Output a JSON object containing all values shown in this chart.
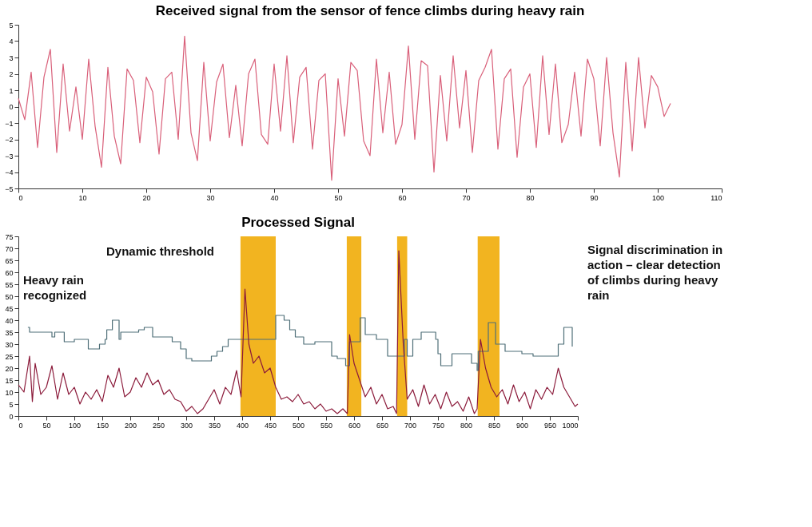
{
  "chart_data": [
    {
      "type": "line",
      "title": "Received signal from the sensor of fence climbs during heavy rain",
      "xlim": [
        0,
        110
      ],
      "xticks": [
        0,
        10,
        20,
        30,
        40,
        50,
        60,
        70,
        80,
        90,
        100,
        110
      ],
      "ylim": [
        -5,
        5
      ],
      "yticks": [
        -5,
        -4,
        -3,
        -2,
        -1,
        0,
        1,
        2,
        3,
        4,
        5
      ],
      "grid": false,
      "series": [
        {
          "color": "#d9607a",
          "x": [
            0,
            1,
            2,
            3,
            4,
            5,
            6,
            7,
            8,
            9,
            10,
            11,
            12,
            13,
            14,
            15,
            16,
            17,
            18,
            19,
            20,
            21,
            22,
            23,
            24,
            25,
            26,
            27,
            28,
            29,
            30,
            31,
            32,
            33,
            34,
            35,
            36,
            37,
            38,
            39,
            40,
            41,
            42,
            43,
            44,
            45,
            46,
            47,
            48,
            49,
            50,
            51,
            52,
            53,
            54,
            55,
            56,
            57,
            58,
            59,
            60,
            61,
            62,
            63,
            64,
            65,
            66,
            67,
            68,
            69,
            70,
            71,
            72,
            73,
            74,
            75,
            76,
            77,
            78,
            79,
            80,
            81,
            82,
            83,
            84,
            85,
            86,
            87,
            88,
            89,
            90,
            91,
            92,
            93,
            94,
            95,
            96,
            97,
            98,
            99,
            100,
            101,
            102
          ],
          "values": [
            0.5,
            -0.8,
            2.1,
            -2.5,
            1.8,
            3.5,
            -2.8,
            2.6,
            -1.5,
            1.2,
            -2.0,
            2.9,
            -1.2,
            -3.7,
            2.4,
            -1.8,
            -3.5,
            2.3,
            1.6,
            -2.2,
            1.8,
            0.9,
            -2.9,
            1.7,
            2.1,
            -2.0,
            4.3,
            -1.6,
            -3.3,
            2.7,
            -2.1,
            1.5,
            2.6,
            -1.9,
            1.3,
            -2.4,
            2.0,
            2.9,
            -1.7,
            -2.3,
            2.6,
            -1.5,
            3.1,
            -2.2,
            1.8,
            2.4,
            -2.6,
            1.6,
            2.0,
            -4.5,
            1.7,
            -1.8,
            2.7,
            2.2,
            -2.1,
            -3.0,
            2.9,
            -1.6,
            2.1,
            -2.3,
            -1.1,
            3.7,
            -2.0,
            2.8,
            2.5,
            -4.0,
            1.9,
            -2.1,
            3.1,
            -1.3,
            2.2,
            -2.8,
            1.6,
            2.4,
            3.5,
            -2.6,
            1.7,
            2.3,
            -3.1,
            1.2,
            2.0,
            -2.5,
            3.1,
            -1.7,
            2.6,
            -2.2,
            -1.1,
            2.1,
            -1.8,
            2.9,
            1.7,
            -2.4,
            3.0,
            -1.6,
            -4.3,
            2.7,
            -2.7,
            3.0,
            -1.3,
            1.9,
            1.2,
            -0.6,
            0.2
          ]
        }
      ]
    },
    {
      "type": "line",
      "title": "Processed Signal",
      "xlim": [
        0,
        1000
      ],
      "xticks": [
        0,
        50,
        100,
        150,
        200,
        250,
        300,
        350,
        400,
        450,
        500,
        550,
        600,
        650,
        700,
        750,
        800,
        850,
        900,
        950,
        {
          "value": 1000,
          "label": "1000"
        }
      ],
      "ylim": [
        0,
        75
      ],
      "yticks": [
        0,
        5,
        10,
        15,
        20,
        25,
        30,
        35,
        40,
        45,
        50,
        55,
        60,
        65,
        70,
        75
      ],
      "grid": false,
      "bands": [
        {
          "axis": "x",
          "from": 397,
          "to": 460,
          "color": "#f2b420"
        },
        {
          "axis": "x",
          "from": 587,
          "to": 613,
          "color": "#f2b420"
        },
        {
          "axis": "x",
          "from": 677,
          "to": 695,
          "color": "#f2b420"
        },
        {
          "axis": "x",
          "from": 821,
          "to": 860,
          "color": "#f2b420"
        }
      ],
      "series": [
        {
          "type": "step",
          "color": "#4f6f78",
          "x": [
            17,
            20,
            60,
            65,
            82,
            100,
            125,
            145,
            155,
            158,
            168,
            180,
            183,
            215,
            225,
            240,
            275,
            290,
            300,
            310,
            345,
            355,
            365,
            375,
            460,
            475,
            485,
            495,
            510,
            530,
            560,
            570,
            585,
            592,
            611,
            620,
            640,
            660,
            690,
            695,
            705,
            720,
            746,
            750,
            755,
            775,
            810,
            820,
            822,
            840,
            853,
            870,
            900,
            920,
            935,
            965,
            975,
            985,
            990
          ],
          "values": [
            37,
            35,
            33,
            35,
            31,
            32,
            28,
            30,
            32,
            36,
            40,
            32,
            35,
            36,
            37,
            33,
            31,
            28,
            24,
            23,
            25,
            27,
            29,
            32,
            42,
            40,
            36,
            33,
            30,
            31,
            25,
            24,
            21,
            31,
            41,
            34,
            32,
            25,
            32,
            25,
            32,
            35,
            32,
            26,
            21,
            26,
            22,
            19,
            27,
            39,
            30,
            27,
            26,
            25,
            25,
            30,
            37,
            37,
            29
          ]
        },
        {
          "type": "line",
          "color": "#8b1a3a",
          "x": [
            0,
            10,
            20,
            25,
            30,
            40,
            50,
            60,
            70,
            80,
            90,
            100,
            110,
            120,
            130,
            140,
            150,
            160,
            170,
            180,
            190,
            200,
            210,
            220,
            230,
            240,
            250,
            260,
            270,
            280,
            290,
            300,
            310,
            320,
            330,
            340,
            350,
            360,
            370,
            380,
            390,
            398,
            405,
            412,
            420,
            430,
            440,
            450,
            460,
            470,
            480,
            490,
            500,
            510,
            520,
            530,
            540,
            550,
            560,
            570,
            580,
            588,
            592,
            600,
            610,
            620,
            630,
            640,
            650,
            660,
            670,
            676,
            680,
            688,
            695,
            705,
            715,
            725,
            735,
            745,
            755,
            765,
            775,
            785,
            795,
            805,
            815,
            820,
            826,
            835,
            845,
            855,
            865,
            875,
            885,
            895,
            905,
            915,
            925,
            935,
            945,
            955,
            965,
            975,
            985,
            995,
            1000
          ],
          "values": [
            13,
            10,
            25,
            6,
            22,
            9,
            12,
            21,
            7,
            18,
            9,
            12,
            5,
            10,
            7,
            11,
            6,
            17,
            12,
            20,
            8,
            10,
            16,
            12,
            18,
            13,
            15,
            9,
            11,
            7,
            6,
            2,
            4,
            1,
            3,
            7,
            11,
            5,
            12,
            9,
            19,
            8,
            53,
            30,
            22,
            25,
            18,
            20,
            12,
            7,
            8,
            6,
            9,
            5,
            6,
            3,
            5,
            2,
            3,
            1,
            3,
            1,
            34,
            22,
            15,
            8,
            12,
            5,
            9,
            3,
            4,
            1,
            69,
            30,
            7,
            11,
            4,
            13,
            5,
            9,
            3,
            10,
            4,
            6,
            2,
            8,
            1,
            3,
            32,
            20,
            12,
            8,
            11,
            5,
            13,
            6,
            10,
            3,
            11,
            7,
            12,
            9,
            20,
            12,
            8,
            4,
            5
          ]
        }
      ],
      "annotations": [
        "Heavy rain recognized",
        "Dynamic threshold",
        "Signal discrimination in action – clear detection of climbs during heavy rain"
      ]
    }
  ]
}
